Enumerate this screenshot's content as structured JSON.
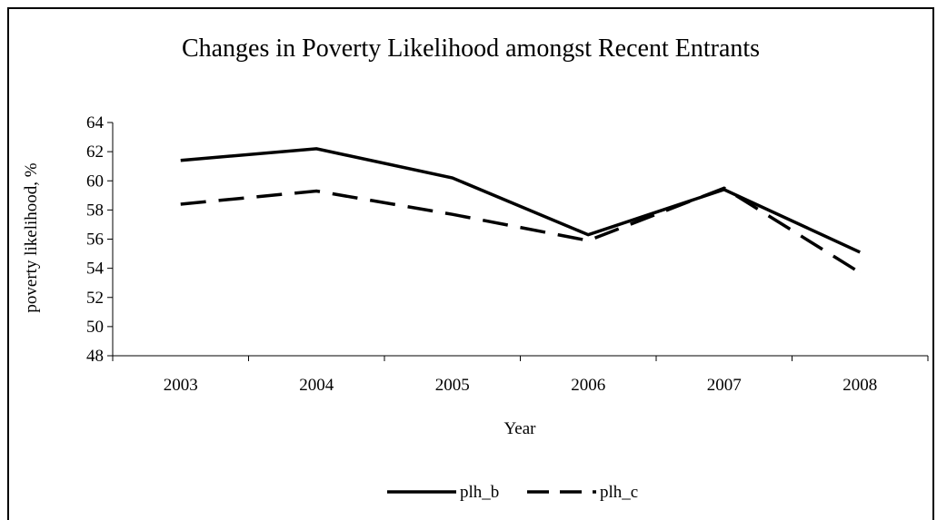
{
  "chart_data": {
    "type": "line",
    "title": "Changes in Poverty Likelihood amongst Recent Entrants",
    "xlabel": "Year",
    "ylabel": "poverty likelihood, %",
    "categories": [
      "2003",
      "2004",
      "2005",
      "2006",
      "2007",
      "2008"
    ],
    "ylim": [
      48,
      64
    ],
    "yticks": [
      48,
      50,
      52,
      54,
      56,
      58,
      60,
      62,
      64
    ],
    "grid": false,
    "legend_position": "bottom",
    "series": [
      {
        "name": "plh_b",
        "style": "solid",
        "color": "#000000",
        "values": [
          61.4,
          62.2,
          60.2,
          56.3,
          59.4,
          55.1
        ]
      },
      {
        "name": "plh_c",
        "style": "dashed",
        "color": "#000000",
        "values": [
          58.4,
          59.3,
          57.7,
          55.9,
          59.5,
          53.7
        ]
      }
    ]
  }
}
